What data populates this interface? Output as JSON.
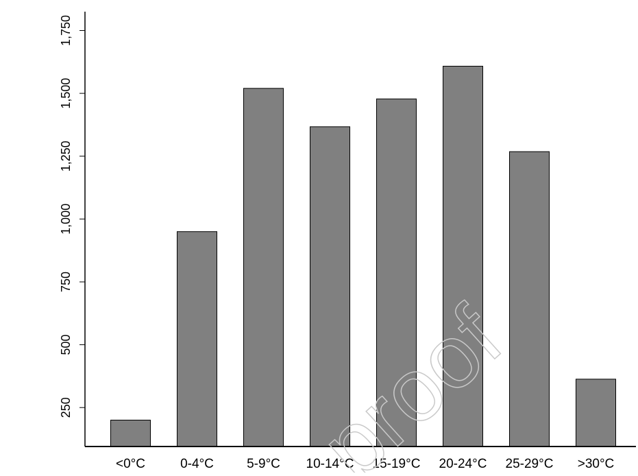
{
  "chart_data": {
    "type": "bar",
    "title": "",
    "xlabel": "",
    "ylabel": "",
    "categories": [
      "<0°C",
      "0-4°C",
      "5-9°C",
      "10-14°C",
      "15-19°C",
      "20-24°C",
      "25-29°C",
      ">30°C"
    ],
    "values": [
      200,
      950,
      1520,
      1367,
      1478,
      1608,
      1268,
      363
    ],
    "ylim": [
      95,
      1825
    ],
    "yticks": [
      250,
      500,
      750,
      1000,
      1250,
      1500,
      1750
    ],
    "ytick_labels": [
      "250",
      "500",
      "750",
      "1,000",
      "1,250",
      "1,500",
      "1,750"
    ],
    "grid": false,
    "legend": "none",
    "bar_color": "#808080",
    "bar_edge_color": "#000000"
  },
  "watermark": "proof"
}
